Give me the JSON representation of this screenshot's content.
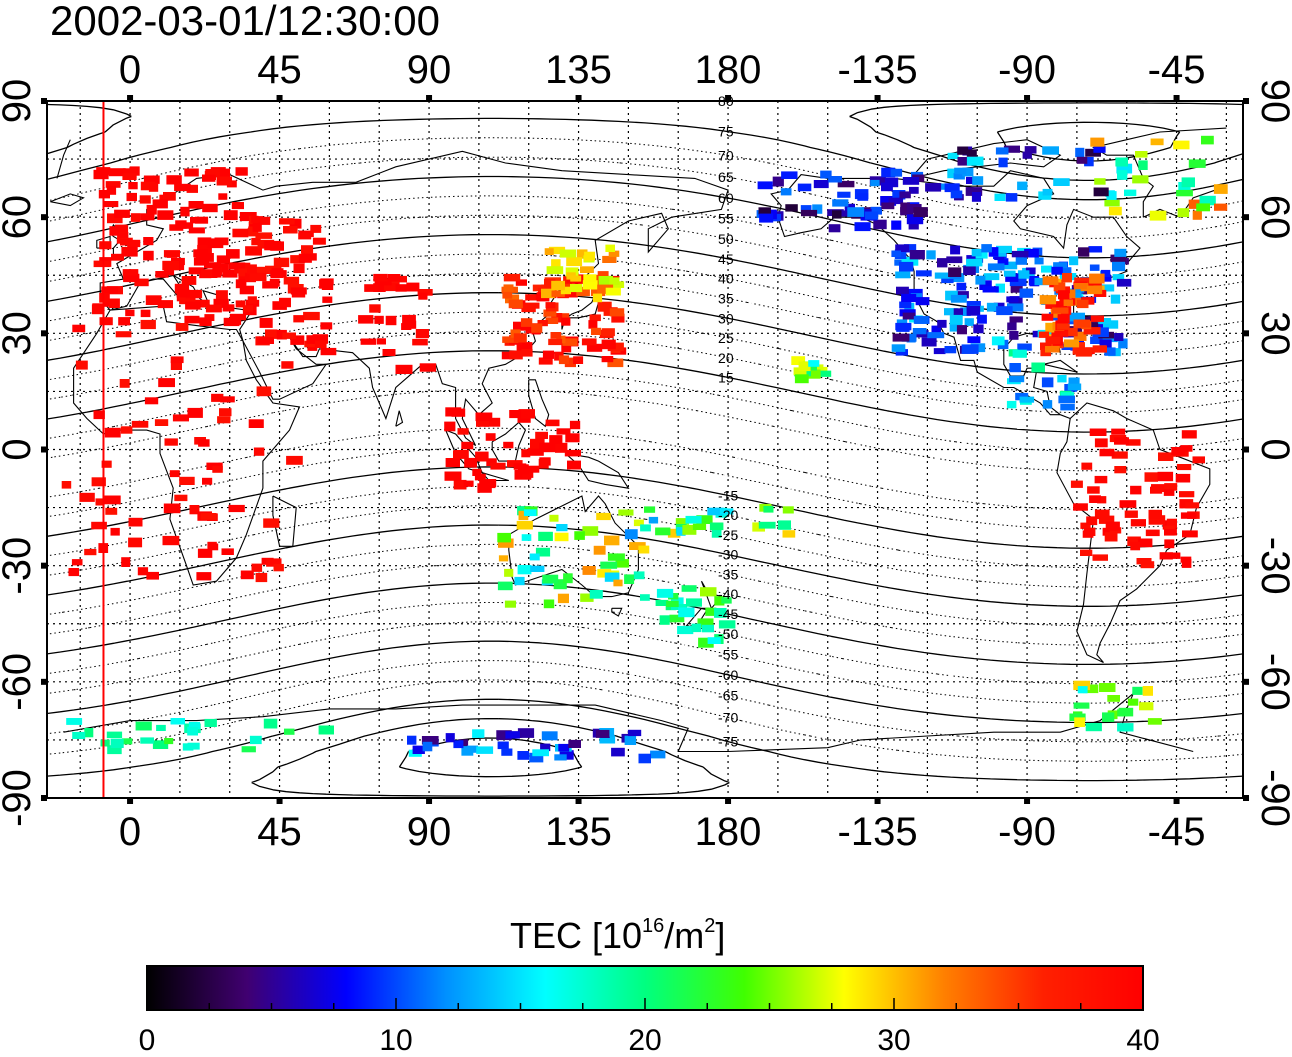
{
  "title": "2002-03-01/12:30:00",
  "map": {
    "projection": "equirectangular",
    "center_longitude": 150,
    "lon_range": [
      -25,
      335
    ],
    "lat_range": [
      -90,
      90
    ],
    "lon_ticks": [
      "0",
      "45",
      "90",
      "135",
      "180",
      "-135",
      "-90",
      "-45"
    ],
    "lat_ticks": [
      "90",
      "60",
      "30",
      "0",
      "-30",
      "-60",
      "-90"
    ],
    "grid": "dotted, every 15 degrees",
    "marker_line_longitude": -8,
    "marker_line_color": "#ff0000",
    "magnetic_latitude_labels_north": [
      "80",
      "75",
      "70",
      "65",
      "60",
      "55",
      "50",
      "45",
      "40",
      "35",
      "30",
      "25",
      "20",
      "15"
    ],
    "magnetic_latitude_labels_south": [
      "-15",
      "-20",
      "-25",
      "-30",
      "-35",
      "-40",
      "-45",
      "-50",
      "-55",
      "-60",
      "-65",
      "-70",
      "-75"
    ]
  },
  "colorbar": {
    "title_prefix": "TEC  [10",
    "title_sup1": "16",
    "title_mid": "/m",
    "title_sup2": "2",
    "title_suffix": "]",
    "min": 0,
    "max": 40,
    "tick_labels": [
      "0",
      "10",
      "20",
      "30",
      "40"
    ],
    "colors": [
      "#000000",
      "#400070",
      "#0000ff",
      "#0090ff",
      "#00ffff",
      "#00ff80",
      "#40ff00",
      "#ffff00",
      "#ff8000",
      "#ff2000",
      "#ff0000"
    ]
  },
  "chart_data": {
    "type": "heatmap",
    "title": "2002-03-01/12:30:00",
    "xlabel": "",
    "ylabel": "",
    "colorbar_label": "TEC [10^16/m^2]",
    "value_range": [
      0,
      40
    ],
    "regions_approx_tec": [
      {
        "region": "Europe",
        "tec": 40
      },
      {
        "region": "Middle East / Central Asia",
        "tec": 40
      },
      {
        "region": "Africa",
        "tec": 40
      },
      {
        "region": "East Asia / Japan",
        "tec": 38
      },
      {
        "region": "Indonesia / SE Asia",
        "tec": 40
      },
      {
        "region": "Australia",
        "tec": 24
      },
      {
        "region": "New Zealand",
        "tec": 21
      },
      {
        "region": "Antarctica",
        "tec": 14
      },
      {
        "region": "Alaska / Northern Canada",
        "tec": 6
      },
      {
        "region": "Central USA",
        "tec": 10
      },
      {
        "region": "Eastern USA",
        "tec": 34
      },
      {
        "region": "Hawaii",
        "tec": 22
      },
      {
        "region": "Central America",
        "tec": 14
      },
      {
        "region": "South America",
        "tec": 40
      },
      {
        "region": "Greenland",
        "tec": 22
      }
    ]
  }
}
